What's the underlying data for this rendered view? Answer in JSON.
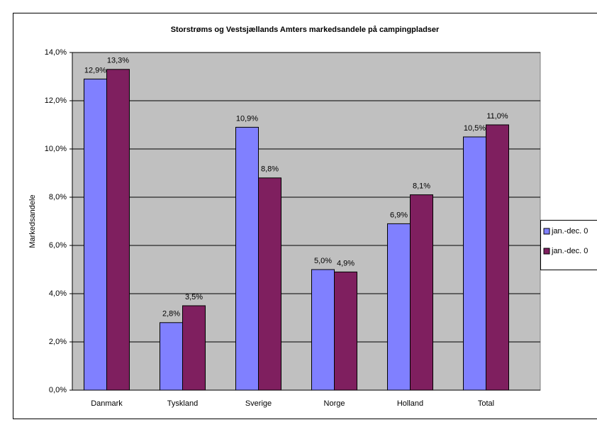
{
  "chart_data": {
    "type": "bar",
    "title": "Storstrøms og Vestsjællands Amters markedsandele på campingpladser",
    "ylabel": "Markedsandele",
    "categories": [
      "Danmark",
      "Tyskland",
      "Sverige",
      "Norge",
      "Holland",
      "Total"
    ],
    "series": [
      {
        "name": "jan.-dec. 0",
        "color": "#8080ff",
        "values": [
          12.9,
          2.8,
          10.9,
          5.0,
          6.9,
          10.5
        ],
        "value_labels": [
          "12,9%",
          "2,8%",
          "10,9%",
          "5,0%",
          "6,9%",
          "10,5%"
        ]
      },
      {
        "name": "jan.-dec. 0",
        "color": "#7f1f5f",
        "values": [
          13.3,
          3.5,
          8.8,
          4.9,
          8.1,
          11.0
        ],
        "value_labels": [
          "13,3%",
          "3,5%",
          "8,8%",
          "4,9%",
          "8,1%",
          "11,0%"
        ]
      }
    ],
    "ylim": [
      0,
      14
    ],
    "yticks": [
      {
        "value": 0,
        "label": "0,0%"
      },
      {
        "value": 2,
        "label": "2,0%"
      },
      {
        "value": 4,
        "label": "4,0%"
      },
      {
        "value": 6,
        "label": "6,0%"
      },
      {
        "value": 8,
        "label": "8,0%"
      },
      {
        "value": 10,
        "label": "10,0%"
      },
      {
        "value": 12,
        "label": "12,0%"
      },
      {
        "value": 14,
        "label": "14,0%"
      }
    ],
    "grid": true,
    "legend": "right"
  }
}
